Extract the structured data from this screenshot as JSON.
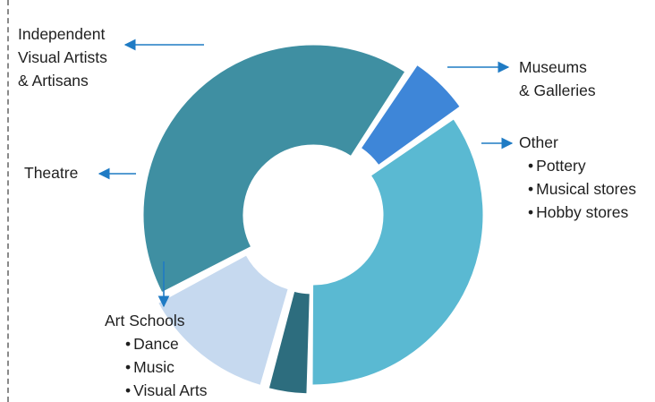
{
  "chart_data": {
    "type": "pie",
    "variant": "exploded-donut",
    "slices": [
      {
        "name": "Independent Visual Artists & Artisans",
        "lines": [
          "Independent",
          "Visual Artists",
          "& Artisans"
        ],
        "value": 35,
        "color": "#5ab9d2",
        "sublabels": []
      },
      {
        "name": "Museums & Galleries",
        "lines": [
          "Museums",
          "& Galleries"
        ],
        "value": 4,
        "color": "#2d6d7e",
        "sublabels": []
      },
      {
        "name": "Other",
        "lines": [
          "Other"
        ],
        "value": 13,
        "color": "#c6d9ef",
        "sublabels": [
          "Pottery",
          "Musical stores",
          "Hobby stores"
        ]
      },
      {
        "name": "Art Schools",
        "lines": [
          "Art Schools"
        ],
        "value": 42,
        "color": "#3f8fa2",
        "sublabels": [
          "Dance",
          "Music",
          "Visual Arts"
        ]
      },
      {
        "name": "Theatre",
        "lines": [
          "Theatre"
        ],
        "value": 6,
        "color": "#3e86d8",
        "sublabels": []
      }
    ],
    "arrow_color": "#1f7bc4"
  }
}
